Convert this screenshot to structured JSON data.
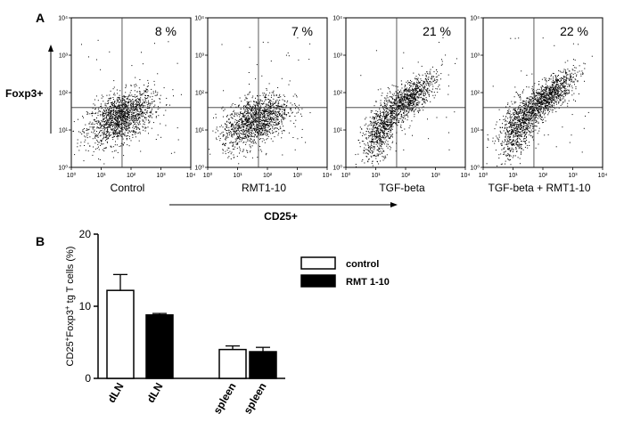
{
  "panels": {
    "a": "A",
    "b": "B"
  },
  "chart_data": [
    {
      "type": "scatter",
      "subtype": "flow-cytometry-dot-plot",
      "y_axis_label": "Foxp3+",
      "x_axis_label": "CD25+",
      "axis_ticks": [
        "10⁰",
        "10¹",
        "10²",
        "10³",
        "10⁴"
      ],
      "xlim": [
        0,
        4
      ],
      "ylim": [
        0,
        4
      ],
      "log_scale": true,
      "gate": {
        "x": 1.7,
        "y": 1.6
      },
      "plots": [
        {
          "label": "Control",
          "percent": "8 %",
          "populations": [
            {
              "cx": 1.65,
              "cy": 1.35,
              "sx": 0.55,
              "sy": 0.32,
              "n": 1500,
              "tilt": 0.28
            }
          ]
        },
        {
          "label": "RMT1-10",
          "percent": "7 %",
          "populations": [
            {
              "cx": 1.6,
              "cy": 1.25,
              "sx": 0.55,
              "sy": 0.32,
              "n": 1400,
              "tilt": 0.3
            }
          ]
        },
        {
          "label": "TGF-beta",
          "percent": "21 %",
          "populations": [
            {
              "cx": 1.15,
              "cy": 1.0,
              "sx": 0.3,
              "sy": 0.35,
              "n": 700,
              "tilt": 0.7
            },
            {
              "cx": 2.1,
              "cy": 1.85,
              "sx": 0.45,
              "sy": 0.22,
              "n": 900,
              "tilt": 0.55
            }
          ]
        },
        {
          "label": "TGF-beta + RMT1-10",
          "percent": "22 %",
          "populations": [
            {
              "cx": 1.2,
              "cy": 1.1,
              "sx": 0.35,
              "sy": 0.35,
              "n": 800,
              "tilt": 0.6
            },
            {
              "cx": 2.15,
              "cy": 1.9,
              "sx": 0.45,
              "sy": 0.22,
              "n": 1000,
              "tilt": 0.55
            }
          ]
        }
      ]
    },
    {
      "type": "bar",
      "ylabel_main": "CD25",
      "ylabel_sup1": "+",
      "ylabel_mid": "Foxp3",
      "ylabel_sup2": "+",
      "ylabel_tail": " tg T cells (%)",
      "ylim": [
        0,
        20
      ],
      "yticks": [
        0,
        10,
        20
      ],
      "categories": [
        "dLN",
        "dLN",
        "spleen",
        "spleen"
      ],
      "series": [
        {
          "name": "control",
          "color": "#ffffff"
        },
        {
          "name": "RMT 1-10",
          "color": "#000000"
        }
      ],
      "bars": [
        {
          "category": "dLN",
          "series": "control",
          "value": 12.2,
          "error": 2.2
        },
        {
          "category": "dLN",
          "series": "RMT 1-10",
          "value": 8.8,
          "error": 0.2
        },
        {
          "category": "spleen",
          "series": "control",
          "value": 4.0,
          "error": 0.5
        },
        {
          "category": "spleen",
          "series": "RMT 1-10",
          "value": 3.7,
          "error": 0.6
        }
      ],
      "legend_position": "right"
    }
  ]
}
